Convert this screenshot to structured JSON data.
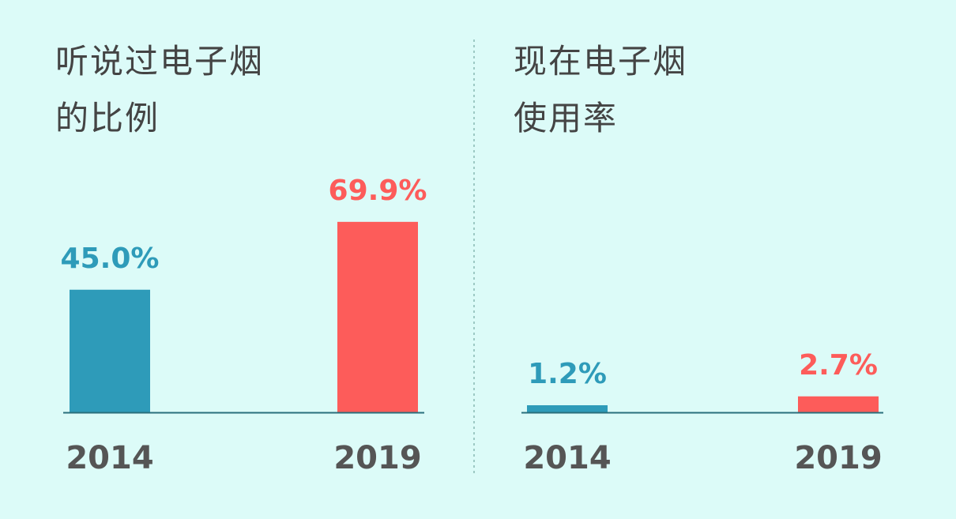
{
  "chart_data": [
    {
      "type": "bar",
      "title": "听说过电子烟的比例",
      "categories": [
        "2014",
        "2019"
      ],
      "series": [
        {
          "values": [
            45.0,
            69.9
          ],
          "value_labels": [
            "45.0%",
            "69.9%"
          ]
        }
      ],
      "colors": [
        "#2e9bb9",
        "#fd5c5a"
      ]
    },
    {
      "type": "bar",
      "title": "现在电子烟使用率",
      "categories": [
        "2014",
        "2019"
      ],
      "series": [
        {
          "values": [
            1.2,
            2.7
          ],
          "value_labels": [
            "1.2%",
            "2.7%"
          ]
        }
      ],
      "colors": [
        "#2e9bb9",
        "#fd5c5a"
      ]
    }
  ]
}
